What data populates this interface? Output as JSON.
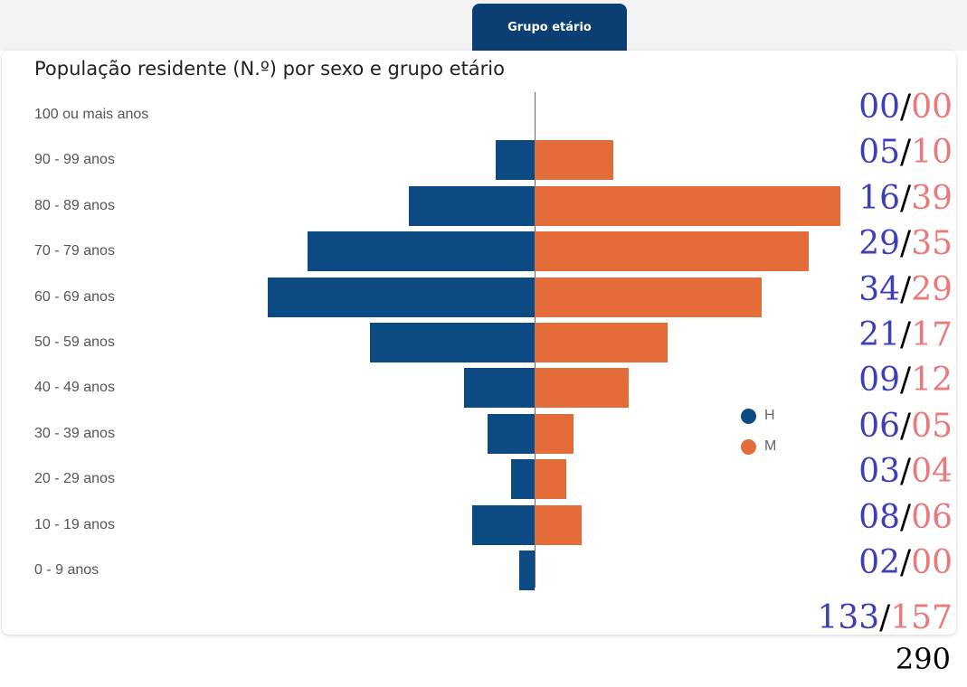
{
  "tab": {
    "label": "Grupo etário"
  },
  "chart_data": {
    "type": "bar",
    "orientation": "horizontal-diverging",
    "title": "População residente (N.º) por sexo e grupo etário",
    "categories": [
      "100 ou mais anos",
      "90 - 99 anos",
      "80 - 89 anos",
      "70 - 79 anos",
      "60 - 69 anos",
      "50 - 59 anos",
      "40 - 49 anos",
      "30 - 39 anos",
      "20 - 29 anos",
      "10 - 19 anos",
      "0 - 9 anos"
    ],
    "series": [
      {
        "name": "H",
        "color": "#0b4a82",
        "values": [
          0,
          5,
          16,
          29,
          34,
          21,
          9,
          6,
          3,
          8,
          2
        ]
      },
      {
        "name": "M",
        "color": "#e46c39",
        "values": [
          0,
          10,
          39,
          35,
          29,
          17,
          12,
          5,
          4,
          6,
          0
        ]
      }
    ],
    "xlim": [
      -39,
      39
    ]
  },
  "annotations": {
    "rows": [
      {
        "h": "00",
        "m": "00"
      },
      {
        "h": "05",
        "m": "10"
      },
      {
        "h": "16",
        "m": "39"
      },
      {
        "h": "29",
        "m": "35"
      },
      {
        "h": "34",
        "m": "29"
      },
      {
        "h": "21",
        "m": "17"
      },
      {
        "h": "09",
        "m": "12"
      },
      {
        "h": "06",
        "m": "05"
      },
      {
        "h": "03",
        "m": "04"
      },
      {
        "h": "08",
        "m": "06"
      },
      {
        "h": "02",
        "m": "00"
      }
    ],
    "totals": {
      "h": "133",
      "m": "157"
    },
    "separator": "/",
    "grand_total": "290",
    "colors": {
      "h": "#3e3fb8",
      "m": "#eb7979",
      "sep": "#000000"
    }
  }
}
